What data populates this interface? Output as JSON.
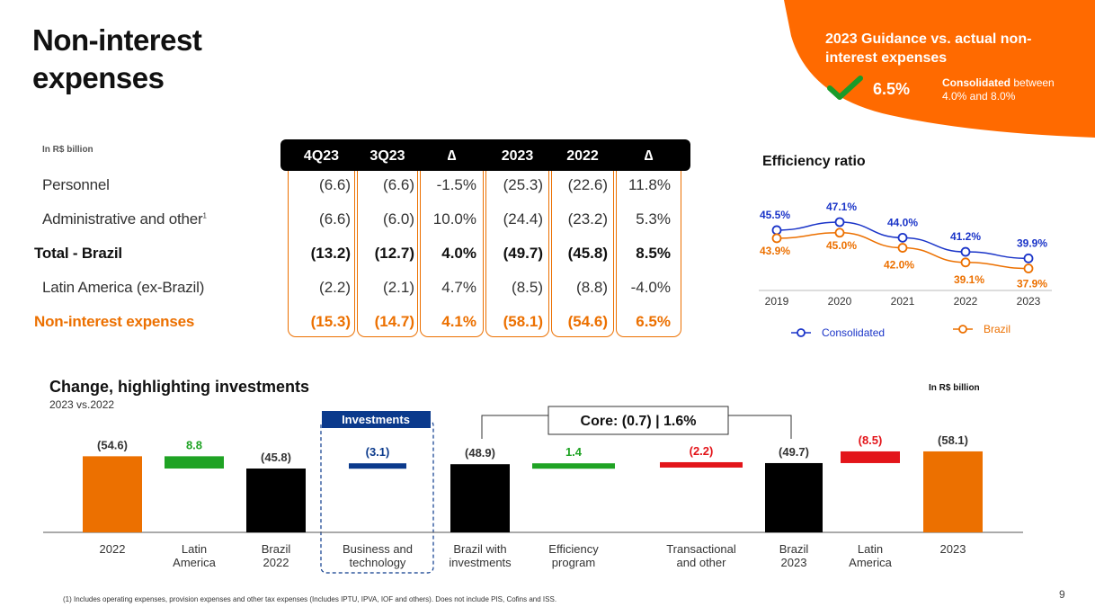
{
  "title": "Non-interest expenses",
  "guidance": {
    "title": "2023 Guidance  vs. actual non-interest expenses",
    "value": "6.5%",
    "note_bold": "Consolidated",
    "note_rest": " between 4.0% and 8.0%",
    "color": "#ec7000"
  },
  "table": {
    "unit": "In R$ billion",
    "headers": [
      "4Q23",
      "3Q23",
      "∆",
      "2023",
      "2022",
      "∆"
    ],
    "rows": [
      {
        "label": "Personnel",
        "footnote": "",
        "values": [
          "(6.6)",
          "(6.6)",
          "-1.5%",
          "(25.3)",
          "(22.6)",
          "11.8%"
        ],
        "style": "normal"
      },
      {
        "label": "Administrative and other",
        "footnote": "1",
        "values": [
          "(6.6)",
          "(6.0)",
          "10.0%",
          "(24.4)",
          "(23.2)",
          "5.3%"
        ],
        "style": "normal"
      },
      {
        "label": "Total - Brazil",
        "footnote": "",
        "values": [
          "(13.2)",
          "(12.7)",
          "4.0%",
          "(49.7)",
          "(45.8)",
          "8.5%"
        ],
        "style": "bold"
      },
      {
        "label": "Latin America (ex-Brazil)",
        "footnote": "",
        "values": [
          "(2.2)",
          "(2.1)",
          "4.7%",
          "(8.5)",
          "(8.8)",
          "-4.0%"
        ],
        "style": "normal"
      },
      {
        "label": "Non-interest expenses",
        "footnote": "",
        "values": [
          "(15.3)",
          "(14.7)",
          "4.1%",
          "(58.1)",
          "(54.6)",
          "6.5%"
        ],
        "style": "orange"
      }
    ]
  },
  "efficiency": {
    "title": "Efficiency ratio",
    "legend_consolidated": "Consolidated",
    "legend_brazil": "Brazil"
  },
  "waterfall": {
    "title": "Change, highlighting investments",
    "subtitle": "2023 vs.2022",
    "unit": "In R$ billion",
    "investments_label": "Investments",
    "core_label": "Core: (0.7) | 1.6%"
  },
  "chart_data": [
    {
      "type": "line",
      "title": "Efficiency ratio",
      "categories": [
        "2019",
        "2020",
        "2021",
        "2022",
        "2023"
      ],
      "series": [
        {
          "name": "Consolidated",
          "values": [
            45.5,
            47.1,
            44.0,
            41.2,
            39.9
          ],
          "labels": [
            "45.5%",
            "47.1%",
            "44.0%",
            "41.2%",
            "39.9%"
          ],
          "color": "#1a34c8"
        },
        {
          "name": "Brazil",
          "values": [
            43.9,
            45.0,
            42.0,
            39.1,
            37.9
          ],
          "labels": [
            "43.9%",
            "45.0%",
            "42.0%",
            "39.1%",
            "37.9%"
          ],
          "color": "#ec7000"
        }
      ],
      "ylim": [
        30,
        55
      ]
    },
    {
      "type": "bar",
      "title": "Change, highlighting investments",
      "subtitle": "2023 vs.2022",
      "ylim": [
        0,
        60
      ],
      "items": [
        {
          "category": "2022",
          "kind": "total",
          "value": 54.6,
          "label": "(54.6)",
          "color": "#ec7000"
        },
        {
          "category": "Latin America",
          "kind": "delta",
          "from": 54.6,
          "to": 45.8,
          "label": "8.8",
          "color": "#1fa324",
          "labelColor": "#1fa324"
        },
        {
          "category": "Brazil 2022",
          "kind": "total",
          "value": 45.8,
          "label": "(45.8)",
          "color": "#000000"
        },
        {
          "category": "Business and technology",
          "kind": "delta",
          "from": 45.8,
          "to": 48.9,
          "label": "(3.1)",
          "color": "#0b3a8c",
          "labelColor": "#0b3a8c"
        },
        {
          "category": "Brazil with investments",
          "kind": "total",
          "value": 48.9,
          "label": "(48.9)",
          "color": "#000000"
        },
        {
          "category": "Efficiency program",
          "kind": "delta",
          "from": 48.9,
          "to": 47.5,
          "label": "1.4",
          "color": "#1fa324",
          "labelColor": "#1fa324"
        },
        {
          "category": "Transactional and other",
          "kind": "delta",
          "from": 47.5,
          "to": 49.7,
          "label": "(2.2)",
          "color": "#e3151a",
          "labelColor": "#e3151a"
        },
        {
          "category": "Brazil 2023",
          "kind": "total",
          "value": 49.7,
          "label": "(49.7)",
          "color": "#000000"
        },
        {
          "category": "Latin America",
          "kind": "delta",
          "from": 49.7,
          "to": 58.1,
          "label": "(8.5)",
          "color": "#e3151a",
          "labelColor": "#e3151a"
        },
        {
          "category": "2023",
          "kind": "total",
          "value": 58.1,
          "label": "(58.1)",
          "color": "#ec7000"
        }
      ]
    }
  ],
  "footnote": "(1) Includes operating expenses, provision expenses and other tax expenses (Includes IPTU, IPVA, IOF and others). Does not include PIS, Cofins and ISS.",
  "page_number": "9"
}
